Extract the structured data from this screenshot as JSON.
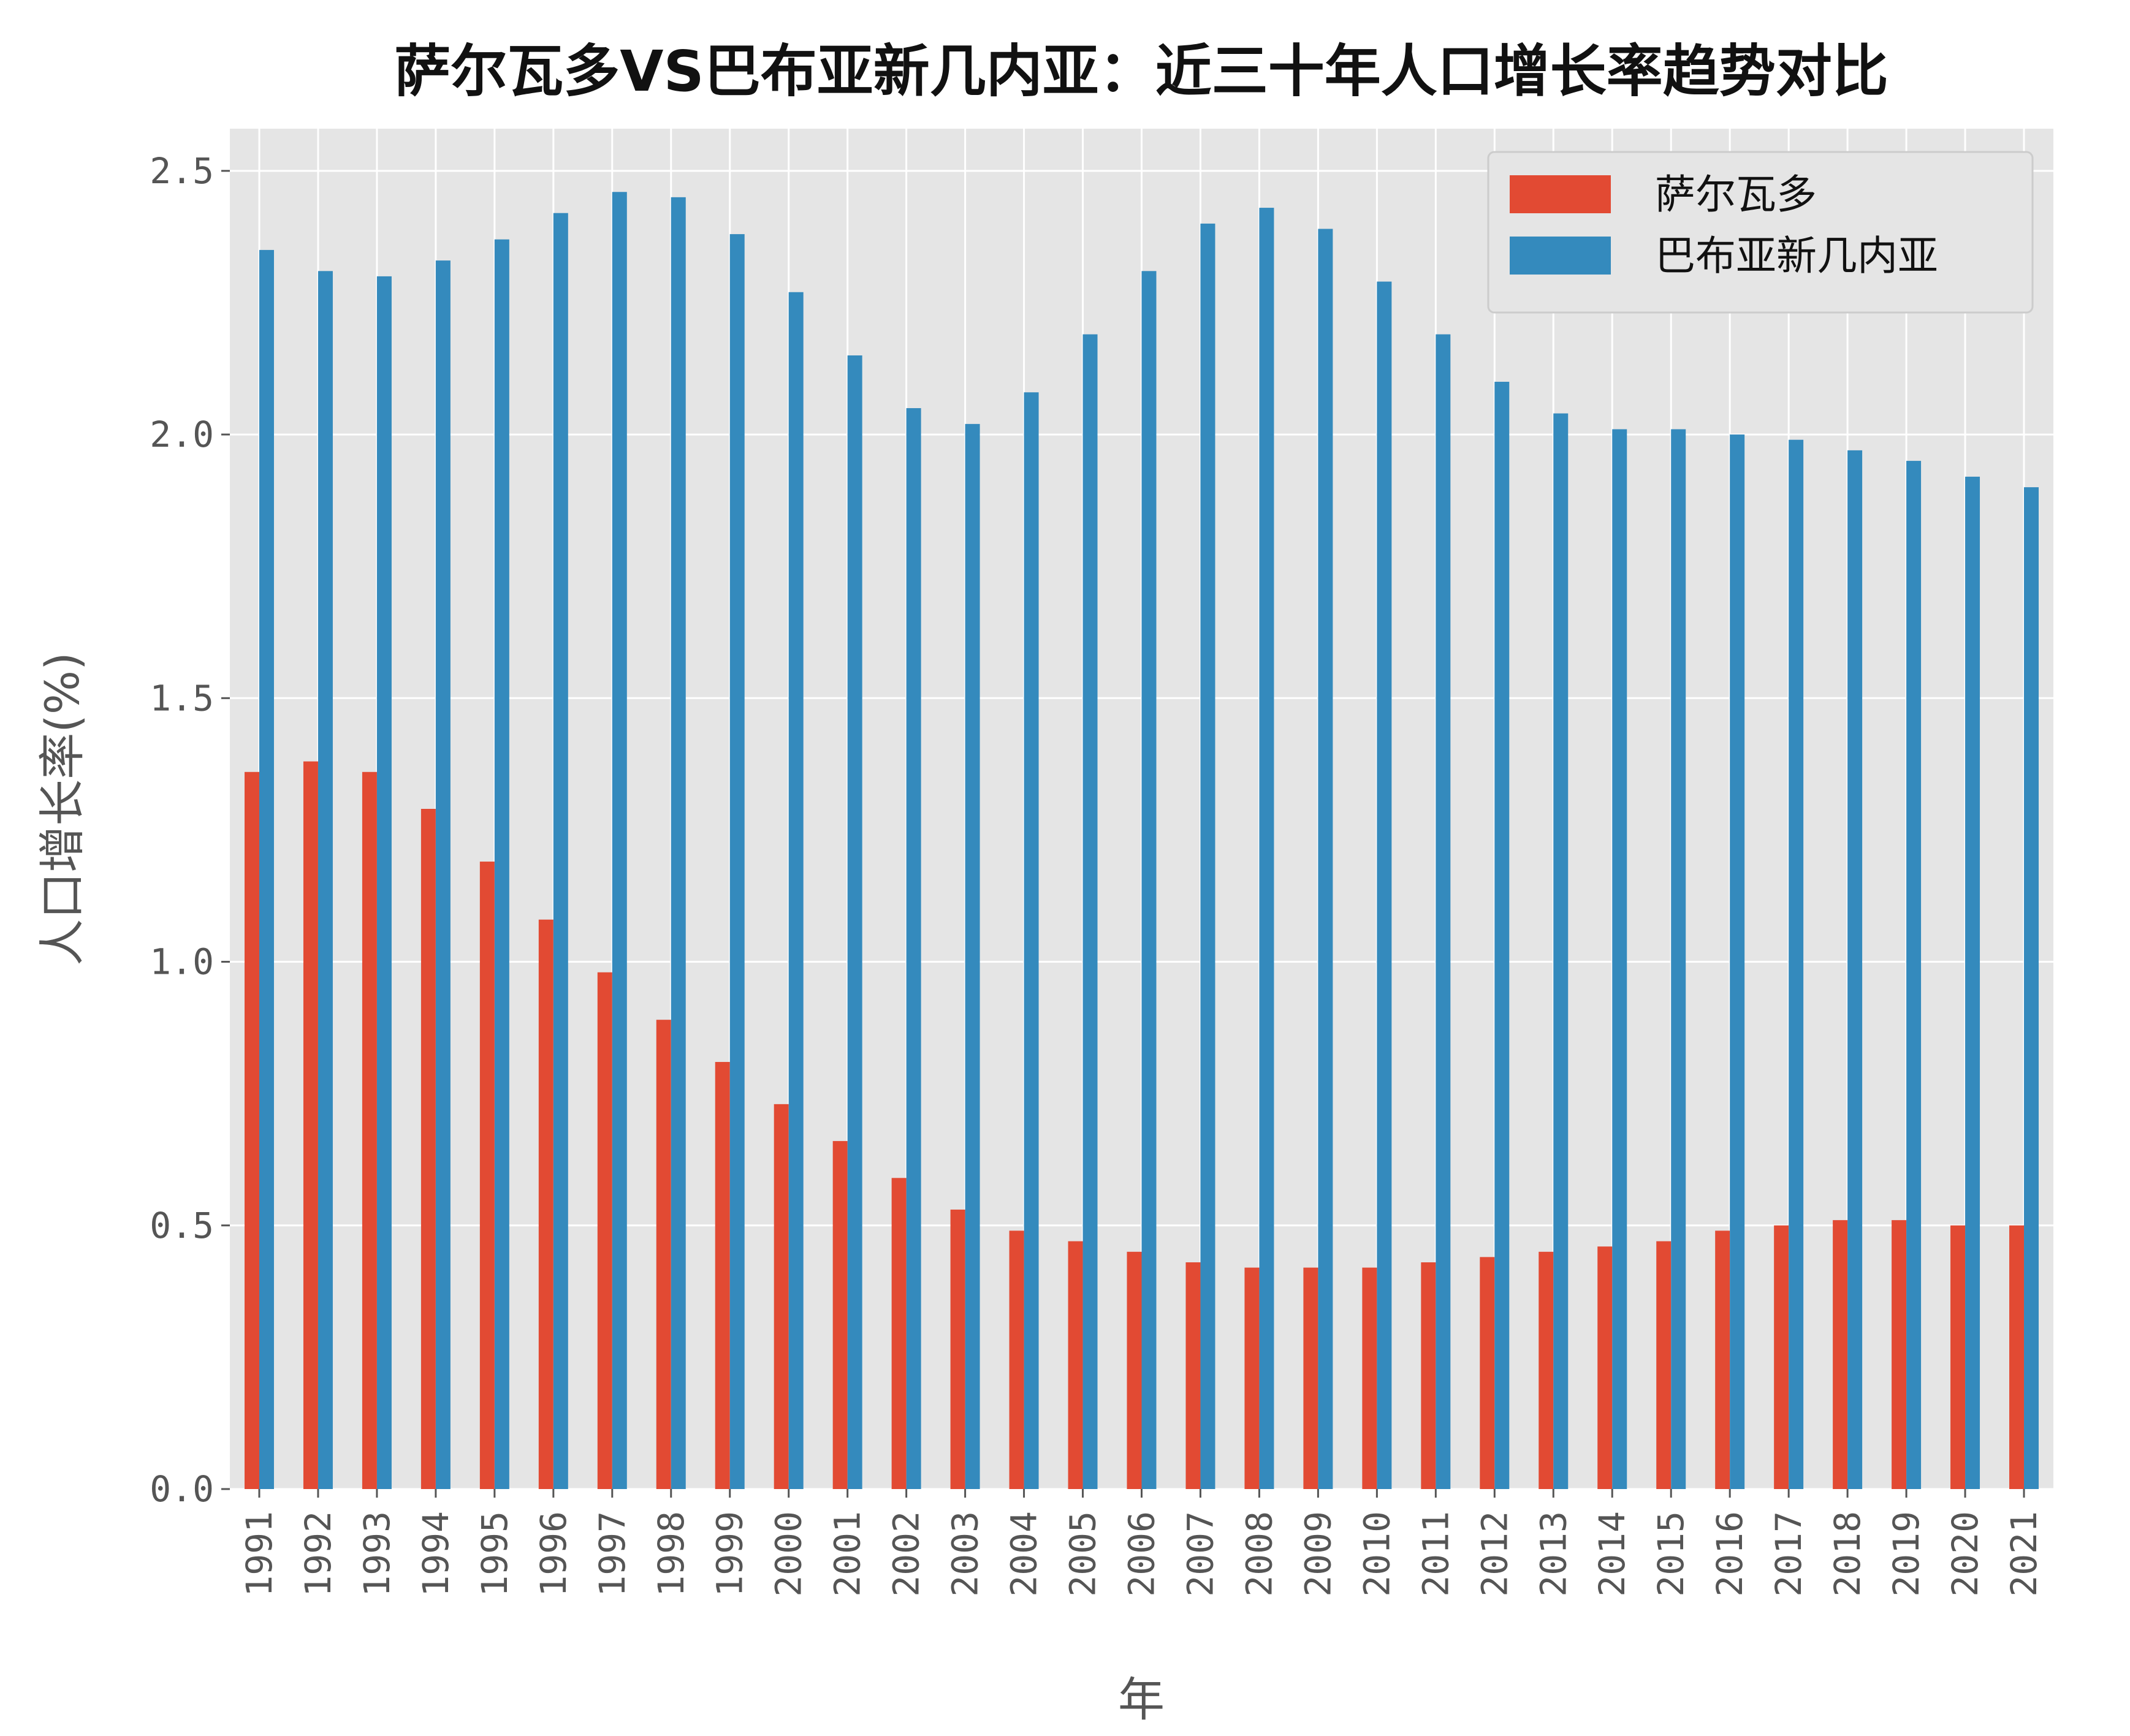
{
  "chart_data": {
    "type": "bar",
    "title": "萨尔瓦多VS巴布亚新几内亚：近三十年人口增长率趋势对比",
    "xlabel": "年",
    "ylabel": "人口增长率(%)",
    "ylim": [
      0,
      2.58
    ],
    "yticks": [
      "0.0",
      "0.5",
      "1.0",
      "1.5",
      "2.0",
      "2.5"
    ],
    "grid": true,
    "legend_position": "top-right",
    "categories": [
      "1991",
      "1992",
      "1993",
      "1994",
      "1995",
      "1996",
      "1997",
      "1998",
      "1999",
      "2000",
      "2001",
      "2002",
      "2003",
      "2004",
      "2005",
      "2006",
      "2007",
      "2008",
      "2009",
      "2010",
      "2011",
      "2012",
      "2013",
      "2014",
      "2015",
      "2016",
      "2017",
      "2018",
      "2019",
      "2020",
      "2021"
    ],
    "series": [
      {
        "name": "萨尔瓦多",
        "color": "#E24A33",
        "values": [
          1.36,
          1.38,
          1.36,
          1.29,
          1.19,
          1.08,
          0.98,
          0.89,
          0.81,
          0.73,
          0.66,
          0.59,
          0.53,
          0.49,
          0.47,
          0.45,
          0.43,
          0.42,
          0.42,
          0.42,
          0.43,
          0.44,
          0.45,
          0.46,
          0.47,
          0.49,
          0.5,
          0.51,
          0.51,
          0.5,
          0.5
        ]
      },
      {
        "name": "巴布亚新几内亚",
        "color": "#348ABD",
        "values": [
          2.35,
          2.31,
          2.3,
          2.33,
          2.37,
          2.42,
          2.46,
          2.45,
          2.38,
          2.27,
          2.15,
          2.05,
          2.02,
          2.08,
          2.19,
          2.31,
          2.4,
          2.43,
          2.39,
          2.29,
          2.19,
          2.1,
          2.04,
          2.01,
          2.01,
          2.0,
          1.99,
          1.97,
          1.95,
          1.92,
          1.9
        ]
      }
    ]
  }
}
